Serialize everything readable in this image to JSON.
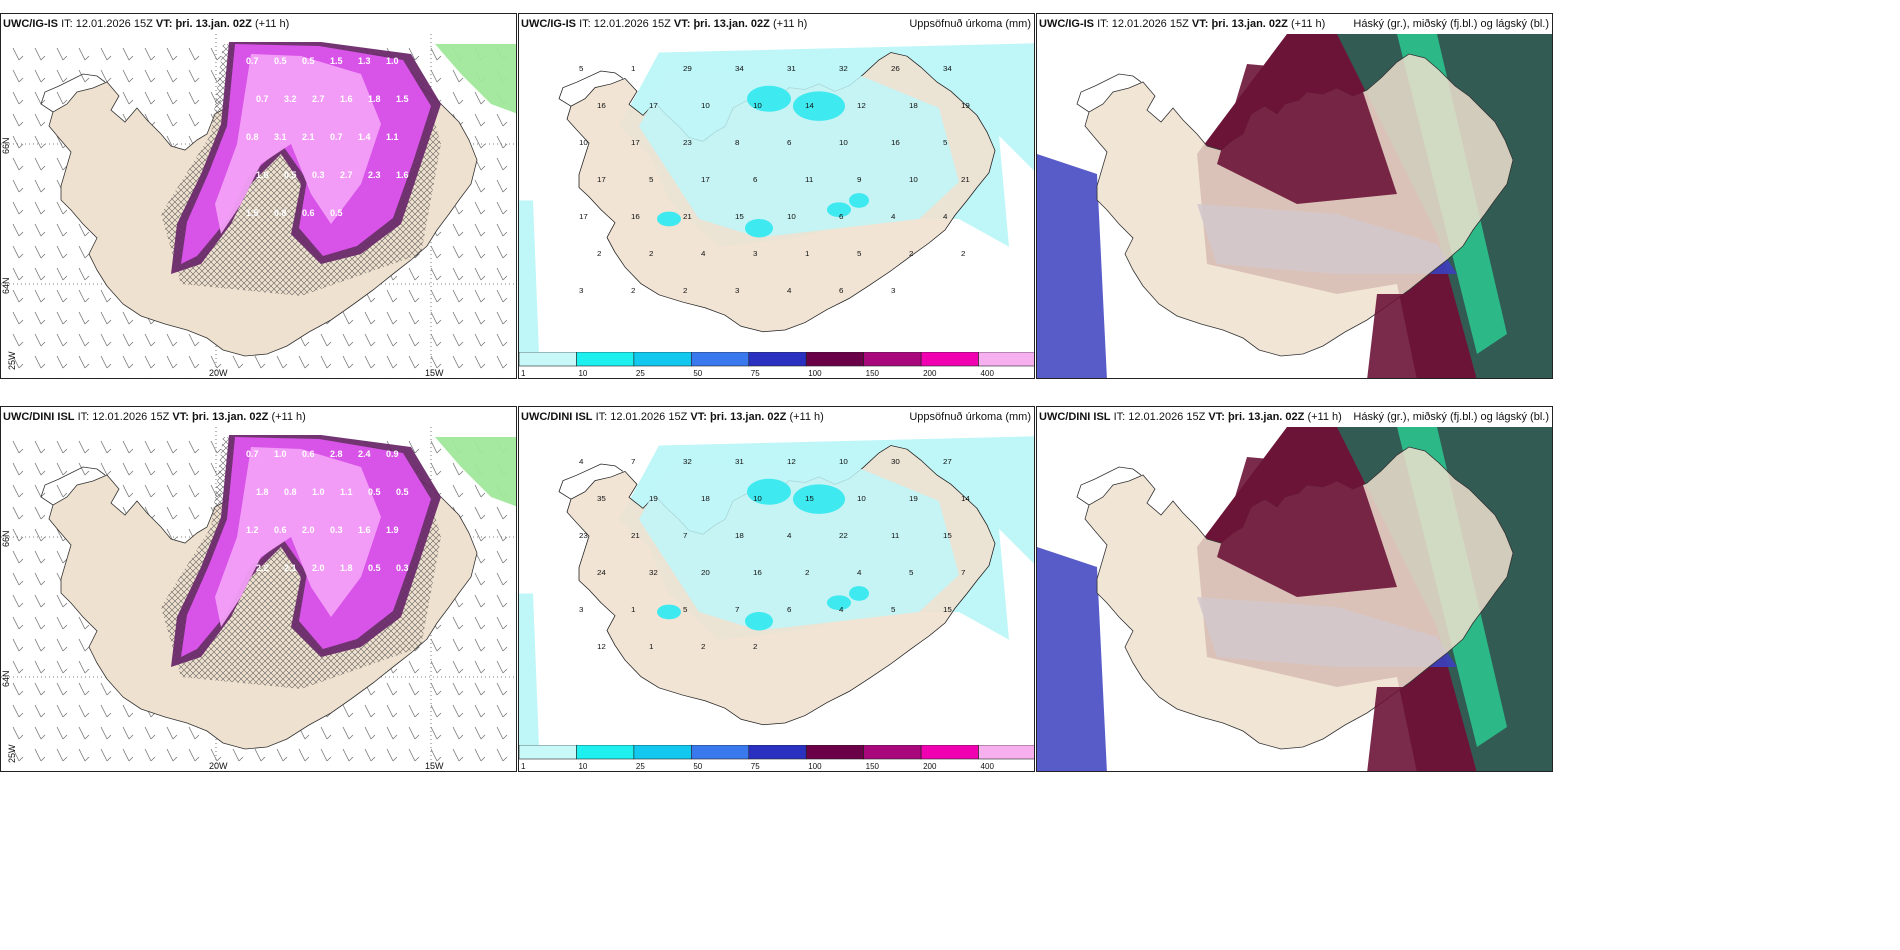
{
  "colors": {
    "land": "#efe1cf",
    "precip_light": "#bff6f8",
    "precip_mid": "#3fe9f0",
    "snow_light": "#f3a0f8",
    "snow_mid": "#dd55ee",
    "snow_dark": "#6a2a6a",
    "cloud_high": "#2f5f55",
    "cloud_mid": "#6c1437",
    "cloud_low": "#3b3fbf",
    "cloud_green": "#2adf9c"
  },
  "panels": [
    {
      "model": "UWC/IG-IS",
      "it_label": "IT:",
      "it_value": "12.01.2026 15Z",
      "vt_label": "VT:",
      "vt_value": "þri. 13.jan. 02Z",
      "lead": "(+11 h)",
      "right_title": "",
      "type": "snow",
      "lat_labels": [
        "66N",
        "64N"
      ],
      "lon_labels": [
        "20W",
        "15W"
      ],
      "corner_label": "25W",
      "values": [
        "0.7",
        "0.5",
        "0.5",
        "1.5",
        "1.3",
        "1.0",
        "0.7",
        "3.2",
        "2.7",
        "1.6",
        "1.8",
        "1.5",
        "0.8",
        "3.1",
        "2.1",
        "0.7",
        "1.4",
        "1.1",
        "1.8",
        "0.5",
        "0.3",
        "2.7",
        "2.3",
        "1.6",
        "1.5",
        "0.8",
        "0.6",
        "0.5"
      ]
    },
    {
      "model": "UWC/IG-IS",
      "it_label": "IT:",
      "it_value": "12.01.2026 15Z",
      "vt_label": "VT:",
      "vt_value": "þri. 13.jan. 02Z",
      "lead": "(+11 h)",
      "right_title": "Uppsöfnuð úrkoma (mm)",
      "type": "precip",
      "values": [
        "5",
        "1",
        "29",
        "34",
        "31",
        "32",
        "26",
        "34",
        "16",
        "17",
        "10",
        "10",
        "14",
        "12",
        "18",
        "19",
        "10",
        "17",
        "23",
        "8",
        "6",
        "10",
        "16",
        "5",
        "17",
        "5",
        "17",
        "6",
        "11",
        "9",
        "10",
        "21",
        "17",
        "16",
        "21",
        "15",
        "10",
        "6",
        "4",
        "4",
        "2",
        "2",
        "4",
        "3",
        "1",
        "5",
        "2",
        "2",
        "3",
        "2",
        "2",
        "3",
        "4",
        "6",
        "3"
      ]
    },
    {
      "model": "UWC/IG-IS",
      "it_label": "IT:",
      "it_value": "12.01.2026 15Z",
      "vt_label": "VT:",
      "vt_value": "þri. 13.jan. 02Z",
      "lead": "(+11 h)",
      "right_title": "Háský (gr.), miðský (fj.bl.) og lágský (bl.)",
      "type": "cloud"
    },
    {
      "model": "UWC/DINI ISL",
      "it_label": "IT:",
      "it_value": "12.01.2026 15Z",
      "vt_label": "VT:",
      "vt_value": "þri. 13.jan. 02Z",
      "lead": "(+11 h)",
      "right_title": "",
      "type": "snow",
      "lat_labels": [
        "66N",
        "64N"
      ],
      "lon_labels": [
        "20W",
        "15W"
      ],
      "corner_label": "25W",
      "values": [
        "0.7",
        "1.0",
        "0.6",
        "2.8",
        "2.4",
        "0.9",
        "1.8",
        "0.8",
        "1.0",
        "1.1",
        "0.5",
        "0.5",
        "1.2",
        "0.6",
        "2.0",
        "0.3",
        "1.6",
        "1.9",
        "2.2",
        "2.1",
        "2.0",
        "1.8",
        "0.5",
        "0.3"
      ]
    },
    {
      "model": "UWC/DINI ISL",
      "it_label": "IT:",
      "it_value": "12.01.2026 15Z",
      "vt_label": "VT:",
      "vt_value": "þri. 13.jan. 02Z",
      "lead": "(+11 h)",
      "right_title": "Uppsöfnuð úrkoma (mm)",
      "type": "precip",
      "values": [
        "4",
        "7",
        "32",
        "31",
        "12",
        "10",
        "30",
        "27",
        "35",
        "19",
        "18",
        "10",
        "15",
        "10",
        "19",
        "14",
        "23",
        "21",
        "7",
        "18",
        "4",
        "22",
        "11",
        "15",
        "24",
        "32",
        "20",
        "16",
        "2",
        "4",
        "5",
        "7",
        "3",
        "1",
        "5",
        "7",
        "6",
        "4",
        "5",
        "15",
        "12",
        "1",
        "2",
        "2"
      ]
    },
    {
      "model": "UWC/DINI ISL",
      "it_label": "IT:",
      "it_value": "12.01.2026 15Z",
      "vt_label": "VT:",
      "vt_value": "þri. 13.jan. 02Z",
      "lead": "(+11 h)",
      "right_title": "Háský (gr.), miðský (fj.bl.) og lágský (bl.)",
      "type": "cloud"
    }
  ],
  "colorbar": {
    "ticks": [
      "1",
      "10",
      "25",
      "50",
      "75",
      "100",
      "150",
      "200",
      "400"
    ],
    "colors": [
      "#c8f8f8",
      "#1ef0f0",
      "#12c8ee",
      "#3a78ee",
      "#2a30c0",
      "#6a0048",
      "#a8087c",
      "#f000b0",
      "#f6b0f0"
    ]
  }
}
